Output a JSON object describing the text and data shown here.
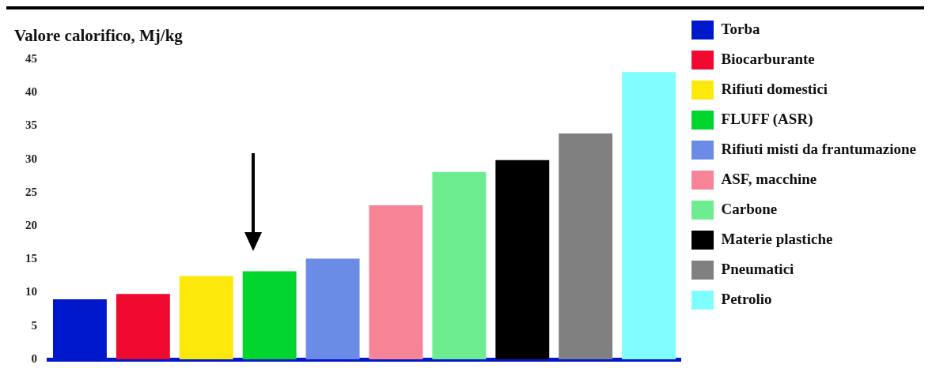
{
  "chart_data": {
    "type": "bar",
    "ylabel": "Valore calorifico, Mj/kg",
    "categories": [
      null,
      null,
      null,
      null,
      null,
      null,
      null,
      null,
      null,
      null
    ],
    "series": [
      {
        "name": "Torba",
        "color": "#0018cc",
        "values": [
          9.0,
          null,
          null,
          null,
          null,
          null,
          null,
          null,
          null,
          null
        ]
      },
      {
        "name": "Biocarburante",
        "color": "#f00a30",
        "values": [
          null,
          9.8,
          null,
          null,
          null,
          null,
          null,
          null,
          null,
          null
        ]
      },
      {
        "name": "Rifiuti domestici",
        "color": "#fde80c",
        "values": [
          null,
          null,
          12.5,
          null,
          null,
          null,
          null,
          null,
          null,
          null
        ]
      },
      {
        "name": "FLUFF (ASR)",
        "color": "#00d62e",
        "values": [
          null,
          null,
          null,
          13.2,
          null,
          null,
          null,
          null,
          null,
          null
        ]
      },
      {
        "name": "Rifiuti misti da frantumazione",
        "color": "#6a8ce6",
        "values": [
          null,
          null,
          null,
          null,
          15.1,
          null,
          null,
          null,
          null,
          null
        ]
      },
      {
        "name": "ASF, macchine",
        "color": "#f68496",
        "values": [
          null,
          null,
          null,
          null,
          null,
          23.1,
          null,
          null,
          null,
          null
        ]
      },
      {
        "name": "Carbone",
        "color": "#6eec90",
        "values": [
          null,
          null,
          null,
          null,
          null,
          null,
          28.1,
          null,
          null,
          null
        ]
      },
      {
        "name": "Materie plastiche",
        "color": "#000000",
        "values": [
          null,
          null,
          null,
          null,
          null,
          null,
          null,
          29.9,
          null,
          null
        ]
      },
      {
        "name": "Pneumatici",
        "color": "#808080",
        "values": [
          null,
          null,
          null,
          null,
          null,
          null,
          null,
          null,
          33.9,
          null
        ]
      },
      {
        "name": "Petrolio",
        "color": "#80feff",
        "values": [
          null,
          null,
          null,
          null,
          null,
          null,
          null,
          null,
          null,
          43.1
        ]
      }
    ],
    "ylim": [
      0,
      45
    ],
    "yticks": [
      0,
      5,
      10,
      15,
      20,
      25,
      30,
      35,
      40,
      45
    ],
    "grid": false,
    "legend": "right",
    "tick_labels": "y"
  }
}
